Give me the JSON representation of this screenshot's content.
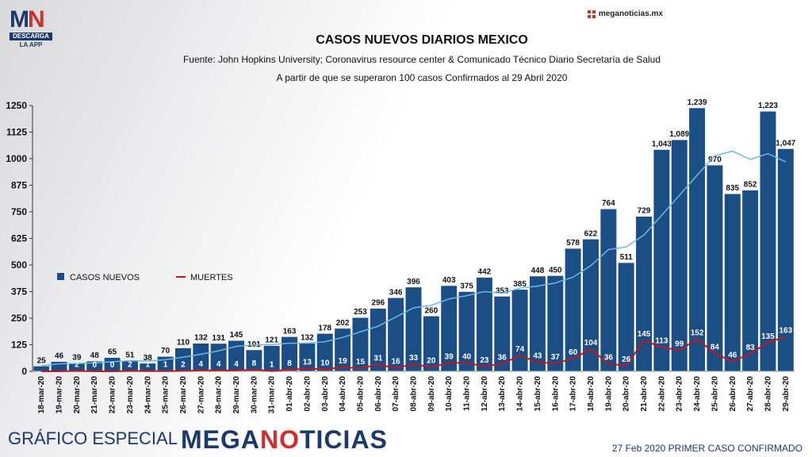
{
  "header": {
    "logo_mn": "MN",
    "logo_descarga": "DESCARGA",
    "logo_app": "LA APP",
    "site": "meganoticias.mx"
  },
  "title": "CASOS NUEVOS DIARIOS MEXICO",
  "source": "Fuente: John Hopkins University; Coronavirus resource center & Comunicado Técnico Diario Secretaría de Salud",
  "subtitle": "A partir de que se superaron 100 casos Confirmados al 29 Abril 2020",
  "footer": {
    "left": "GRÁFICO ESPECIAL",
    "brand": "MEGANOTICIAS",
    "right": "27 Feb 2020 PRIMER CASO CONFIRMADO"
  },
  "colors": {
    "bar": "#1c4e86",
    "trend": "#6ab7e8",
    "deaths": "#c0181f",
    "brand": "#1b3a6b"
  },
  "chart_data": {
    "type": "bar",
    "legend": {
      "bars": "CASOS NUEVOS",
      "line": "MUERTES"
    },
    "ylim": [
      0,
      1250
    ],
    "yticks": [
      0,
      125,
      250,
      375,
      500,
      625,
      750,
      875,
      1000,
      1125,
      1250
    ],
    "ytick_labels": [
      "0",
      "125",
      "250",
      "375",
      "500",
      "625",
      "750",
      "875",
      "1000",
      "1125",
      "1250"
    ],
    "categories": [
      "18-mar-20",
      "19-mar-20",
      "20-mar-20",
      "21-mar-20",
      "22-mar-20",
      "23-mar-20",
      "24-mar-20",
      "25-mar-20",
      "26-mar-20",
      "27-mar-20",
      "28-mar-20",
      "29-mar-20",
      "30-mar-20",
      "31-mar-20",
      "01-abr-20",
      "02-abr-20",
      "03-abr-20",
      "04-abr-20",
      "05-abr-20",
      "06-abr-20",
      "07-abr-20",
      "08-abr-20",
      "09-abr-20",
      "10-abr-20",
      "11-abr-20",
      "12-abr-20",
      "13-abr-20",
      "14-abr-20",
      "15-abr-20",
      "16-abr-20",
      "17-abr-20",
      "18-abr-20",
      "19-abr-20",
      "20-abr-20",
      "21-abr-20",
      "22-abr-20",
      "23-abr-20",
      "24-abr-20",
      "25-abr-20",
      "26-abr-20",
      "27-abr-20",
      "28-abr-20",
      "29-abr-20"
    ],
    "series": [
      {
        "name": "CASOS NUEVOS",
        "values": [
          25,
          46,
          39,
          48,
          65,
          51,
          38,
          70,
          110,
          132,
          131,
          145,
          101,
          121,
          163,
          132,
          178,
          202,
          253,
          296,
          346,
          396,
          260,
          403,
          375,
          442,
          353,
          385,
          448,
          450,
          578,
          622,
          764,
          511,
          729,
          1043,
          1089,
          1239,
          970,
          835,
          852,
          1223,
          1047
        ],
        "labels": [
          "25",
          "46",
          "39",
          "48",
          "65",
          "51",
          "38",
          "70",
          "110",
          "132",
          "131",
          "145",
          "101",
          "121",
          "163",
          "132",
          "178",
          "202",
          "253",
          "296",
          "346",
          "396",
          "260",
          "403",
          "375",
          "442",
          "353",
          "385",
          "448",
          "450",
          "578",
          "622",
          "764",
          "511",
          "729",
          "1,043",
          "1,089",
          "1,239",
          "970",
          "835",
          "852",
          "1,223",
          "1,047"
        ]
      },
      {
        "name": "MUERTES",
        "values": [
          0,
          0,
          2,
          0,
          0,
          2,
          1,
          1,
          2,
          4,
          4,
          4,
          8,
          1,
          8,
          13,
          10,
          19,
          15,
          31,
          16,
          33,
          20,
          39,
          40,
          23,
          36,
          74,
          43,
          37,
          60,
          104,
          36,
          26,
          145,
          113,
          99,
          152,
          84,
          46,
          83,
          135,
          163
        ],
        "labels": [
          "",
          "",
          "2",
          "0",
          "0",
          "2",
          "1",
          "1",
          "2",
          "4",
          "4",
          "4",
          "8",
          "1",
          "8",
          "13",
          "10",
          "19",
          "15",
          "31",
          "16",
          "33",
          "20",
          "39",
          "40",
          "23",
          "36",
          "74",
          "43",
          "37",
          "60",
          "104",
          "36",
          "26",
          "145",
          "113",
          "99",
          "152",
          "84",
          "46",
          "83",
          "135",
          "163"
        ]
      }
    ],
    "trend_values": [
      null,
      null,
      null,
      null,
      null,
      null,
      null,
      null,
      null,
      null,
      null,
      null,
      null,
      null,
      null,
      null,
      null,
      null,
      null,
      null,
      null,
      null,
      null,
      null,
      null,
      null,
      null,
      null,
      null,
      null,
      null,
      null,
      null,
      null,
      null,
      null,
      null,
      null,
      null,
      null,
      null,
      null,
      null
    ]
  }
}
